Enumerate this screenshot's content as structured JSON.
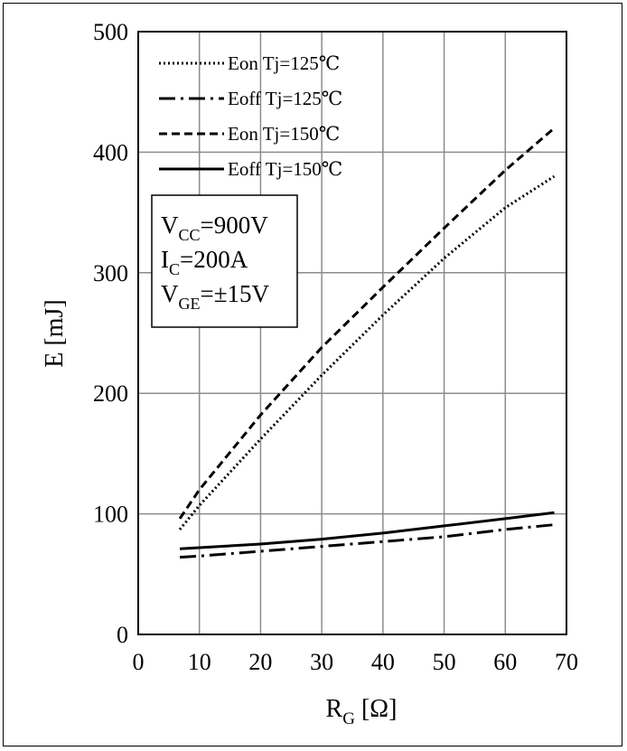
{
  "chart_data": {
    "type": "line",
    "xlabel": {
      "main": "R",
      "sub": "G",
      "unit": " [Ω]"
    },
    "ylabel": "E [mJ]",
    "xlim": [
      0,
      70
    ],
    "ylim": [
      0,
      500
    ],
    "xticks": [
      "0",
      "10",
      "20",
      "30",
      "40",
      "50",
      "60",
      "70"
    ],
    "yticks": [
      "0",
      "100",
      "200",
      "300",
      "400",
      "500"
    ],
    "grid": true,
    "legend_position": "top-left",
    "series": [
      {
        "name": "Eon Tj=125℃",
        "style": "dotted",
        "color": "#000000",
        "x": [
          6.8,
          10,
          20,
          30,
          40,
          50,
          60,
          68
        ],
        "y": [
          87,
          107,
          162,
          215,
          265,
          312,
          354,
          380
        ]
      },
      {
        "name": "Eoff Tj=125℃",
        "style": "dashdot",
        "color": "#000000",
        "x": [
          6.8,
          10,
          20,
          30,
          40,
          50,
          60,
          68
        ],
        "y": [
          64,
          65,
          69,
          73,
          77,
          81,
          87,
          91
        ]
      },
      {
        "name": "Eon Tj=150℃",
        "style": "dashed",
        "color": "#000000",
        "x": [
          6.8,
          10,
          20,
          30,
          40,
          50,
          60,
          68
        ],
        "y": [
          96,
          120,
          182,
          238,
          288,
          337,
          385,
          420
        ]
      },
      {
        "name": "Eoff Tj=150℃",
        "style": "solid",
        "color": "#000000",
        "x": [
          6.8,
          10,
          20,
          30,
          40,
          50,
          60,
          68
        ],
        "y": [
          71,
          72,
          75,
          79,
          84,
          90,
          96,
          101
        ]
      }
    ],
    "conditions": [
      {
        "main": "V",
        "sub": "CC",
        "rest": "=900V"
      },
      {
        "main": "I",
        "sub": "C",
        "rest": "=200A"
      },
      {
        "main": "V",
        "sub": "GE",
        "rest": "=±15V"
      }
    ]
  }
}
